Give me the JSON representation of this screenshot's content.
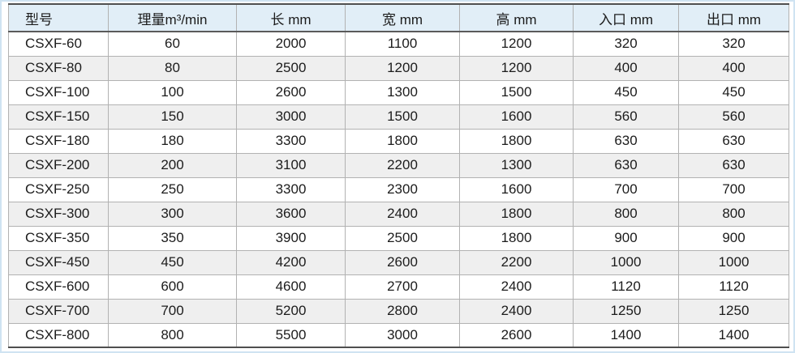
{
  "table": {
    "columns": [
      {
        "key": "model",
        "label": "型号"
      },
      {
        "key": "flow",
        "label": "理量m³/min"
      },
      {
        "key": "length",
        "label": "长 mm"
      },
      {
        "key": "width",
        "label": "宽 mm"
      },
      {
        "key": "height",
        "label": "高 mm"
      },
      {
        "key": "inlet",
        "label": "入口 mm"
      },
      {
        "key": "outlet",
        "label": "出口 mm"
      }
    ],
    "rows": [
      [
        "CSXF-60",
        "60",
        "2000",
        "1100",
        "1200",
        "320",
        "320"
      ],
      [
        "CSXF-80",
        "80",
        "2500",
        "1200",
        "1200",
        "400",
        "400"
      ],
      [
        "CSXF-100",
        "100",
        "2600",
        "1300",
        "1500",
        "450",
        "450"
      ],
      [
        "CSXF-150",
        "150",
        "3000",
        "1500",
        "1600",
        "560",
        "560"
      ],
      [
        "CSXF-180",
        "180",
        "3300",
        "1800",
        "1800",
        "630",
        "630"
      ],
      [
        "CSXF-200",
        "200",
        "3100",
        "2200",
        "1300",
        "630",
        "630"
      ],
      [
        "CSXF-250",
        "250",
        "3300",
        "2300",
        "1600",
        "700",
        "700"
      ],
      [
        "CSXF-300",
        "300",
        "3600",
        "2400",
        "1800",
        "800",
        "800"
      ],
      [
        "CSXF-350",
        "350",
        "3900",
        "2500",
        "1800",
        "900",
        "900"
      ],
      [
        "CSXF-450",
        "450",
        "4200",
        "2600",
        "2200",
        "1000",
        "1000"
      ],
      [
        "CSXF-600",
        "600",
        "4600",
        "2700",
        "2400",
        "1120",
        "1120"
      ],
      [
        "CSXF-700",
        "700",
        "5200",
        "2800",
        "2400",
        "1250",
        "1250"
      ],
      [
        "CSXF-800",
        "800",
        "5500",
        "3000",
        "2600",
        "1400",
        "1400"
      ]
    ]
  },
  "colors": {
    "header_bg": "#e1eef7",
    "alt_row_bg": "#efefef",
    "row_bg": "#ffffff",
    "cell_border": "#b2b2b2",
    "outer_edge": "#4f4f4f",
    "page_frame": "#cfe3f2",
    "text": "#1c1c1c"
  }
}
